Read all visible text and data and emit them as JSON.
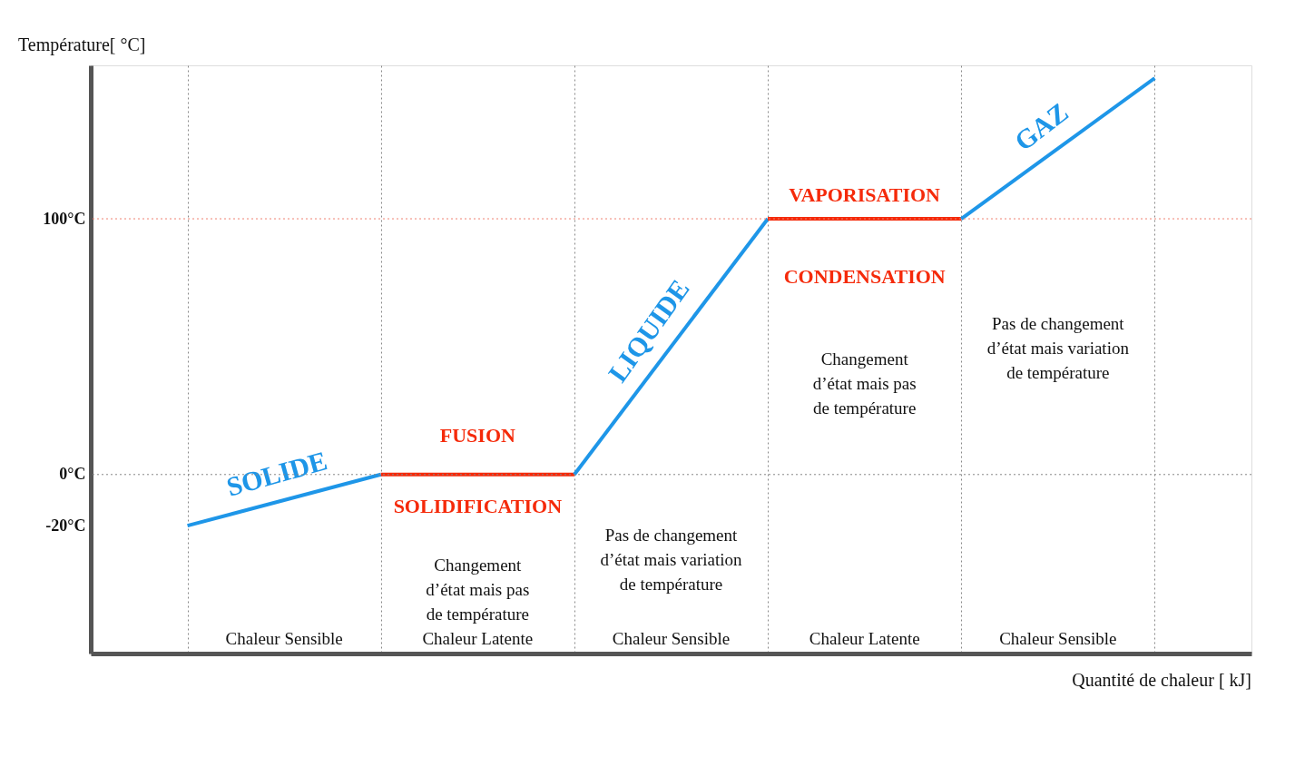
{
  "chart_data": {
    "type": "line",
    "xlabel": "Quantité de chaleur [ kJ]",
    "ylabel": "Température[ °C]",
    "categories": [
      null,
      null,
      null,
      null,
      null,
      null
    ],
    "ylim": [
      -70,
      160
    ],
    "yticks": [
      {
        "value": -20,
        "label": "-20°C"
      },
      {
        "value": 0,
        "label": "0°C"
      },
      {
        "value": 100,
        "label": "100°C"
      }
    ],
    "tick_labels": "y",
    "grid": "x",
    "marker": "none",
    "line_style": "solid",
    "series": [
      {
        "name": "SOLIDE",
        "color": "#1e96e8",
        "values": [
          -20,
          0,
          null,
          null,
          null,
          null
        ]
      },
      {
        "color": "#f52a0a",
        "values": [
          null,
          0,
          0,
          null,
          null,
          null
        ]
      },
      {
        "name": "LIQUIDE",
        "color": "#1e96e8",
        "values": [
          null,
          null,
          0,
          100,
          null,
          null
        ]
      },
      {
        "color": "#f52a0a",
        "values": [
          null,
          null,
          null,
          100,
          100,
          null
        ]
      },
      {
        "name": "GAZ",
        "color": "#1e96e8",
        "values": [
          null,
          null,
          null,
          null,
          100,
          155
        ]
      }
    ],
    "ref_lines": [
      {
        "axis": "y",
        "value": 0,
        "color": "#888888",
        "line_style": "dotted"
      },
      {
        "axis": "y",
        "value": 100,
        "color": "#f08070",
        "line_style": "dotted"
      }
    ],
    "annotations": [
      "FUSION",
      "SOLIDIFICATION",
      "VAPORISATION",
      "CONDENSATION",
      "Changement\nd’état mais pas\nde température",
      "Changement\nd’état mais pas\nde température",
      "Pas de changement\nd’état mais variation\nde température",
      "Pas de changement\nd’état mais variation\nde température",
      "Chaleur Sensible",
      "Chaleur Latente",
      "Chaleur Sensible",
      "Chaleur Latente",
      "Chaleur Sensible"
    ]
  }
}
